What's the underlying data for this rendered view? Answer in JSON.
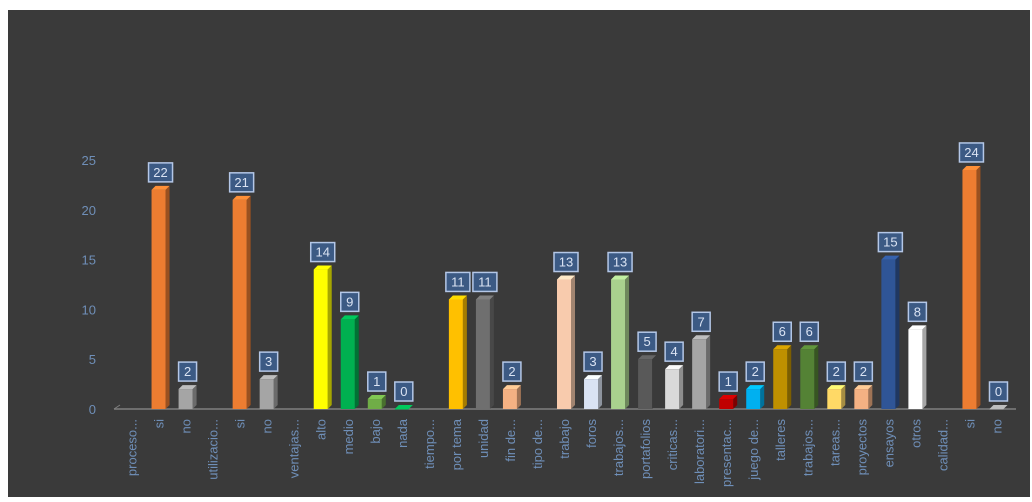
{
  "chart_data": {
    "type": "bar",
    "title": "",
    "xlabel": "",
    "ylabel": "",
    "ylim": [
      0,
      25
    ],
    "yticks": [
      0,
      5,
      10,
      15,
      20,
      25
    ],
    "grid": false,
    "legend": "none",
    "categories": [
      "proceso...",
      "si",
      "no",
      "utilizacio...",
      "si",
      "no",
      "ventajas...",
      "alto",
      "medio",
      "bajo",
      "nada",
      "tiempo...",
      "por tema",
      "unidad",
      "fin de...",
      "tipo de...",
      "trabajo",
      "foros",
      "trabajos...",
      "portafolios",
      "criticas...",
      "laboratori...",
      "presentac...",
      "juego de...",
      "talleres",
      "trabajos...",
      "tareas...",
      "proyectos",
      "ensayos",
      "otros",
      "calidad...",
      "si",
      "no"
    ],
    "values": [
      null,
      22,
      2,
      null,
      21,
      3,
      null,
      14,
      9,
      1,
      0,
      null,
      11,
      11,
      2,
      null,
      13,
      3,
      13,
      5,
      4,
      7,
      1,
      2,
      6,
      6,
      2,
      2,
      15,
      8,
      null,
      24,
      0
    ],
    "bar_colors": [
      "#ed7d31",
      "#ed7d31",
      "#a5a5a5",
      "#ed7d31",
      "#ed7d31",
      "#a5a5a5",
      "#ed7d31",
      "#ffff00",
      "#00b050",
      "#70ad47",
      "#00b050",
      "#ffc000",
      "#ffc000",
      "#6f6f6f",
      "#f4b183",
      "#f4b183",
      "#f8cbad",
      "#dae3f3",
      "#a9d18e",
      "#595959",
      "#d9d9d9",
      "#a5a5a5",
      "#c00000",
      "#00b0f0",
      "#bf9000",
      "#548235",
      "#ffd966",
      "#f4b183",
      "#2f5597",
      "#ffffff",
      "#ed7d31",
      "#ed7d31",
      "#a5a5a5"
    ],
    "colors": {
      "background": "#3a3a3a",
      "axis": "#7f7f7f",
      "tick_label": "#6f8fb8",
      "data_label_bg": "#3c5a84",
      "data_label_border": "#b4c7e7",
      "data_label_text": "#dae3f3"
    }
  }
}
